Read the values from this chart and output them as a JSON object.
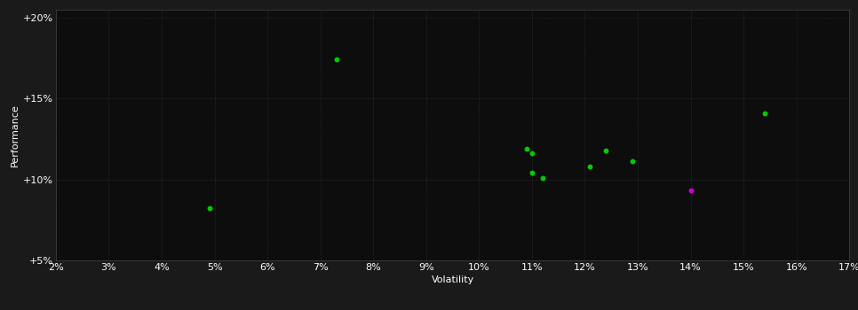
{
  "xlabel": "Volatility",
  "ylabel": "Performance",
  "background_color": "#1a1a1a",
  "plot_bg_color": "#0d0d0d",
  "green_color": "#00cc00",
  "magenta_color": "#cc00cc",
  "xlim": [
    0.02,
    0.17
  ],
  "ylim": [
    0.05,
    0.205
  ],
  "xticks": [
    0.02,
    0.03,
    0.04,
    0.05,
    0.06,
    0.07,
    0.08,
    0.09,
    0.1,
    0.11,
    0.12,
    0.13,
    0.14,
    0.15,
    0.16,
    0.17
  ],
  "yticks": [
    0.05,
    0.1,
    0.15,
    0.2
  ],
  "ytick_labels": [
    "+5%",
    "+10%",
    "+15%",
    "+20%"
  ],
  "xtick_labels": [
    "2%",
    "3%",
    "4%",
    "5%",
    "6%",
    "7%",
    "8%",
    "9%",
    "10%",
    "11%",
    "12%",
    "13%",
    "14%",
    "15%",
    "16%",
    "17%"
  ],
  "green_points": [
    [
      0.073,
      0.174
    ],
    [
      0.049,
      0.082
    ],
    [
      0.109,
      0.119
    ],
    [
      0.11,
      0.116
    ],
    [
      0.11,
      0.104
    ],
    [
      0.112,
      0.101
    ],
    [
      0.121,
      0.108
    ],
    [
      0.124,
      0.118
    ],
    [
      0.129,
      0.111
    ],
    [
      0.154,
      0.141
    ]
  ],
  "magenta_points": [
    [
      0.14,
      0.093
    ]
  ],
  "marker_size": 18,
  "font_size": 8,
  "label_font_size": 8,
  "grid_color": "#3a3a3a",
  "grid_alpha": 1.0,
  "grid_linewidth": 0.5,
  "spine_color": "#444444",
  "text_color": "#ffffff"
}
